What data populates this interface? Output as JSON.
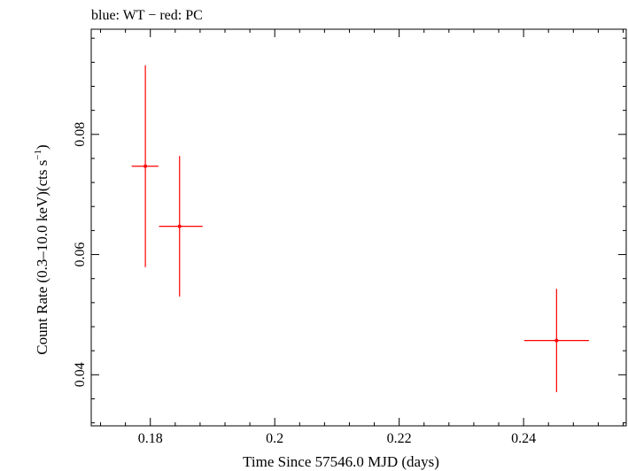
{
  "chart_data": {
    "type": "scatter",
    "title": "blue: WT − red: PC",
    "xlabel": "Time Since 57546.0 MJD (days)",
    "ylabel_main": "Count Rate (0.3–10.0 keV)(cts s",
    "ylabel_sup": "−1",
    "ylabel_end": ")",
    "xlim": [
      0.1705,
      0.2565
    ],
    "ylim": [
      0.0315,
      0.0975
    ],
    "xticks": [
      0.18,
      0.2,
      0.22,
      0.24
    ],
    "xtick_labels": [
      "0.18",
      "0.2",
      "0.22",
      "0.24"
    ],
    "yticks": [
      0.04,
      0.06,
      0.08
    ],
    "ytick_labels": [
      "0.04",
      "0.06",
      "0.08"
    ],
    "series": [
      {
        "color": "#ff0000",
        "points": [
          {
            "x": 0.1792,
            "y": 0.0747,
            "xerr": [
              0.0022,
              0.0021
            ],
            "yerr": [
              0.0168,
              0.0168
            ]
          },
          {
            "x": 0.1847,
            "y": 0.0647,
            "xerr": [
              0.0033,
              0.0037
            ],
            "yerr": [
              0.0117,
              0.0117
            ]
          },
          {
            "x": 0.2453,
            "y": 0.0457,
            "xerr": [
              0.0052,
              0.0052
            ],
            "yerr": [
              0.0086,
              0.0086
            ]
          }
        ]
      }
    ]
  }
}
